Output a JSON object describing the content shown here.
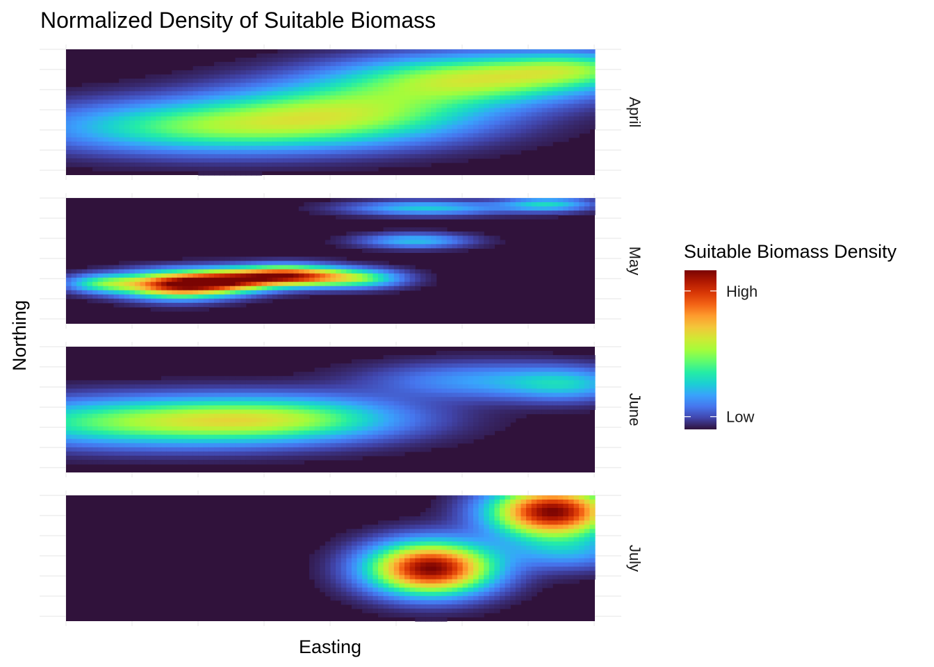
{
  "chart_data": {
    "type": "heatmap",
    "title": "Normalized Density of Suitable Biomass",
    "xlabel": "Easting",
    "ylabel": "Northing",
    "x_tick_labels": "none",
    "y_tick_labels": "none",
    "grid": true,
    "facet": "rows",
    "facets": [
      {
        "name": "April",
        "hotspots": [
          {
            "x": 0.28,
            "y": 0.38,
            "sx": 0.22,
            "sy": 0.14,
            "w": 0.42
          },
          {
            "x": 0.55,
            "y": 0.52,
            "sx": 0.18,
            "sy": 0.16,
            "w": 0.4
          },
          {
            "x": 0.78,
            "y": 0.77,
            "sx": 0.17,
            "sy": 0.13,
            "w": 0.5
          },
          {
            "x": 0.97,
            "y": 0.85,
            "sx": 0.1,
            "sy": 0.09,
            "w": 0.28
          }
        ]
      },
      {
        "name": "May",
        "hotspots": [
          {
            "x": 0.21,
            "y": 0.31,
            "sx": 0.07,
            "sy": 0.07,
            "w": 0.92
          },
          {
            "x": 0.42,
            "y": 0.38,
            "sx": 0.07,
            "sy": 0.055,
            "w": 0.88
          },
          {
            "x": 0.31,
            "y": 0.34,
            "sx": 0.06,
            "sy": 0.06,
            "w": 0.6
          },
          {
            "x": 0.07,
            "y": 0.32,
            "sx": 0.05,
            "sy": 0.05,
            "w": 0.35
          },
          {
            "x": 0.55,
            "y": 0.36,
            "sx": 0.06,
            "sy": 0.05,
            "w": 0.4
          },
          {
            "x": 0.66,
            "y": 0.66,
            "sx": 0.07,
            "sy": 0.04,
            "w": 0.26
          },
          {
            "x": 0.68,
            "y": 0.92,
            "sx": 0.1,
            "sy": 0.04,
            "w": 0.28
          },
          {
            "x": 0.91,
            "y": 0.95,
            "sx": 0.06,
            "sy": 0.04,
            "w": 0.3
          }
        ]
      },
      {
        "name": "June",
        "hotspots": [
          {
            "x": 0.16,
            "y": 0.4,
            "sx": 0.22,
            "sy": 0.13,
            "w": 0.45
          },
          {
            "x": 0.42,
            "y": 0.43,
            "sx": 0.16,
            "sy": 0.12,
            "w": 0.33
          },
          {
            "x": 0.78,
            "y": 0.73,
            "sx": 0.14,
            "sy": 0.1,
            "w": 0.2
          },
          {
            "x": 0.95,
            "y": 0.7,
            "sx": 0.08,
            "sy": 0.09,
            "w": 0.22
          }
        ]
      },
      {
        "name": "July",
        "hotspots": [
          {
            "x": 0.69,
            "y": 0.42,
            "sx": 0.08,
            "sy": 0.14,
            "w": 1.0
          },
          {
            "x": 0.92,
            "y": 0.87,
            "sx": 0.08,
            "sy": 0.14,
            "w": 1.0
          },
          {
            "x": 0.95,
            "y": 0.55,
            "sx": 0.08,
            "sy": 0.1,
            "w": 0.2
          }
        ]
      }
    ],
    "legend": {
      "title": "Suitable Biomass Density",
      "position": "right",
      "labels": [
        {
          "text": "High",
          "value": 0.87
        },
        {
          "text": "Low",
          "value": 0.08
        }
      ]
    },
    "colors": [
      "#30123B",
      "#4145AB",
      "#4675ED",
      "#39A2FC",
      "#1BCFD4",
      "#24ECA6",
      "#61FC6C",
      "#A4FC3B",
      "#D1E834",
      "#F3C63A",
      "#FE9B2D",
      "#F36315",
      "#D93806",
      "#B11901",
      "#7A0403"
    ]
  }
}
